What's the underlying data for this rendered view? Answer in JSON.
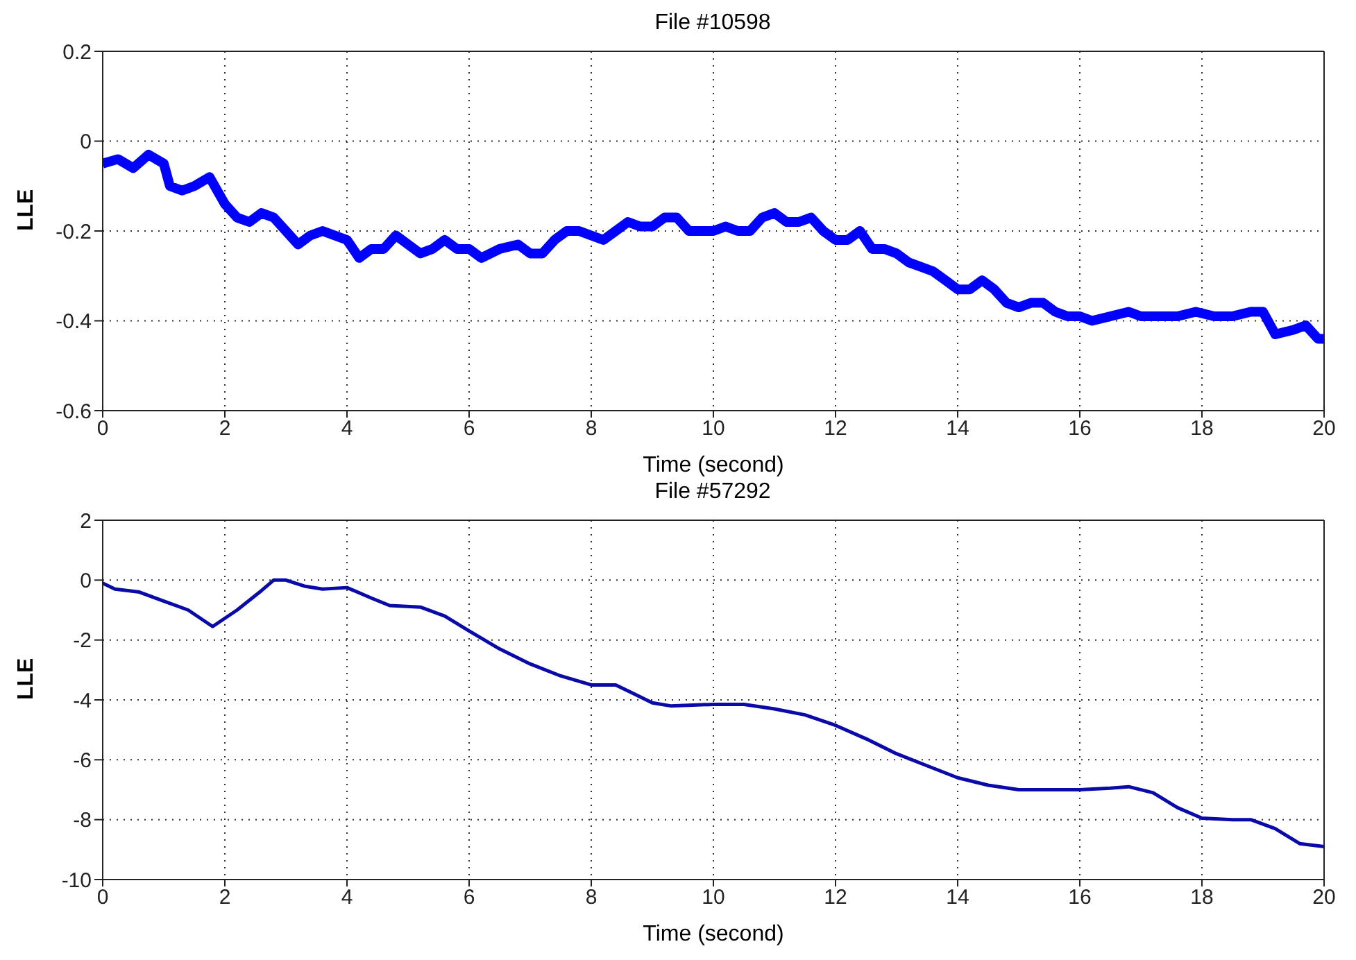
{
  "chart_data": [
    {
      "type": "line",
      "title": "File #10598",
      "xlabel": "Time (second)",
      "ylabel": "LLE",
      "xlim": [
        0,
        20
      ],
      "xticks": [
        0,
        2,
        4,
        6,
        8,
        10,
        12,
        14,
        16,
        18,
        20
      ],
      "ylim": [
        -0.6,
        0.2
      ],
      "yticks": [
        -0.6,
        -0.4,
        -0.2,
        0,
        0.2
      ],
      "grid": true,
      "marker": "none",
      "line_style": "solid",
      "series": [
        {
          "color": "#0000ff",
          "x": [
            0,
            0.25,
            0.5,
            0.75,
            1.0,
            1.1,
            1.3,
            1.5,
            1.75,
            2.0,
            2.2,
            2.4,
            2.6,
            2.8,
            3.0,
            3.2,
            3.4,
            3.6,
            3.8,
            4.0,
            4.2,
            4.4,
            4.6,
            4.8,
            5.0,
            5.2,
            5.4,
            5.6,
            5.8,
            6.0,
            6.2,
            6.5,
            6.8,
            7.0,
            7.2,
            7.4,
            7.6,
            7.8,
            8.0,
            8.2,
            8.4,
            8.6,
            8.8,
            9.0,
            9.2,
            9.4,
            9.6,
            9.8,
            10.0,
            10.2,
            10.4,
            10.6,
            10.8,
            11.0,
            11.2,
            11.4,
            11.6,
            11.8,
            12.0,
            12.2,
            12.4,
            12.6,
            12.8,
            13.0,
            13.2,
            13.4,
            13.6,
            13.8,
            14.0,
            14.2,
            14.4,
            14.6,
            14.8,
            15.0,
            15.2,
            15.4,
            15.6,
            15.8,
            16.0,
            16.2,
            16.5,
            16.8,
            17.0,
            17.3,
            17.6,
            17.9,
            18.2,
            18.5,
            18.8,
            19.0,
            19.2,
            19.5,
            19.7,
            19.9,
            20
          ],
          "values": [
            -0.05,
            -0.04,
            -0.06,
            -0.03,
            -0.05,
            -0.1,
            -0.11,
            -0.1,
            -0.08,
            -0.14,
            -0.17,
            -0.18,
            -0.16,
            -0.17,
            -0.2,
            -0.23,
            -0.21,
            -0.2,
            -0.21,
            -0.22,
            -0.26,
            -0.24,
            -0.24,
            -0.21,
            -0.23,
            -0.25,
            -0.24,
            -0.22,
            -0.24,
            -0.24,
            -0.26,
            -0.24,
            -0.23,
            -0.25,
            -0.25,
            -0.22,
            -0.2,
            -0.2,
            -0.21,
            -0.22,
            -0.2,
            -0.18,
            -0.19,
            -0.19,
            -0.17,
            -0.17,
            -0.2,
            -0.2,
            -0.2,
            -0.19,
            -0.2,
            -0.2,
            -0.17,
            -0.16,
            -0.18,
            -0.18,
            -0.17,
            -0.2,
            -0.22,
            -0.22,
            -0.2,
            -0.24,
            -0.24,
            -0.25,
            -0.27,
            -0.28,
            -0.29,
            -0.31,
            -0.33,
            -0.33,
            -0.31,
            -0.33,
            -0.36,
            -0.37,
            -0.36,
            -0.36,
            -0.38,
            -0.39,
            -0.39,
            -0.4,
            -0.39,
            -0.38,
            -0.39,
            -0.39,
            -0.39,
            -0.38,
            -0.39,
            -0.39,
            -0.38,
            -0.38,
            -0.43,
            -0.42,
            -0.41,
            -0.44,
            -0.44
          ]
        }
      ]
    },
    {
      "type": "line",
      "title": "File #57292",
      "xlabel": "Time (second)",
      "ylabel": "LLE",
      "xlim": [
        0,
        20
      ],
      "xticks": [
        0,
        2,
        4,
        6,
        8,
        10,
        12,
        14,
        16,
        18,
        20
      ],
      "ylim": [
        -10,
        2
      ],
      "yticks": [
        -10,
        -8,
        -6,
        -4,
        -2,
        0,
        2
      ],
      "grid": true,
      "marker": "none",
      "line_style": "solid",
      "series": [
        {
          "color": "#0a0aa8",
          "x": [
            0,
            0.2,
            0.6,
            1.0,
            1.4,
            1.8,
            2.2,
            2.6,
            2.8,
            3.0,
            3.3,
            3.6,
            4.0,
            4.4,
            4.7,
            5.2,
            5.6,
            6.0,
            6.5,
            7.0,
            7.5,
            8.0,
            8.4,
            8.7,
            9.0,
            9.3,
            10.0,
            10.5,
            11.0,
            11.5,
            12.0,
            12.5,
            13.0,
            13.5,
            14.0,
            14.5,
            15.0,
            15.5,
            16.0,
            16.5,
            16.8,
            17.2,
            17.6,
            18.0,
            18.5,
            18.8,
            19.2,
            19.6,
            20
          ],
          "values": [
            -0.1,
            -0.3,
            -0.4,
            -0.7,
            -1.0,
            -1.55,
            -1.0,
            -0.35,
            0,
            0,
            -0.2,
            -0.3,
            -0.25,
            -0.6,
            -0.85,
            -0.9,
            -1.2,
            -1.7,
            -2.3,
            -2.8,
            -3.2,
            -3.5,
            -3.5,
            -3.8,
            -4.1,
            -4.2,
            -4.15,
            -4.15,
            -4.3,
            -4.5,
            -4.85,
            -5.3,
            -5.8,
            -6.2,
            -6.6,
            -6.85,
            -7.0,
            -7.0,
            -7.0,
            -6.95,
            -6.9,
            -7.1,
            -7.6,
            -7.95,
            -8.0,
            -8.0,
            -8.3,
            -8.8,
            -8.9
          ]
        }
      ]
    }
  ]
}
